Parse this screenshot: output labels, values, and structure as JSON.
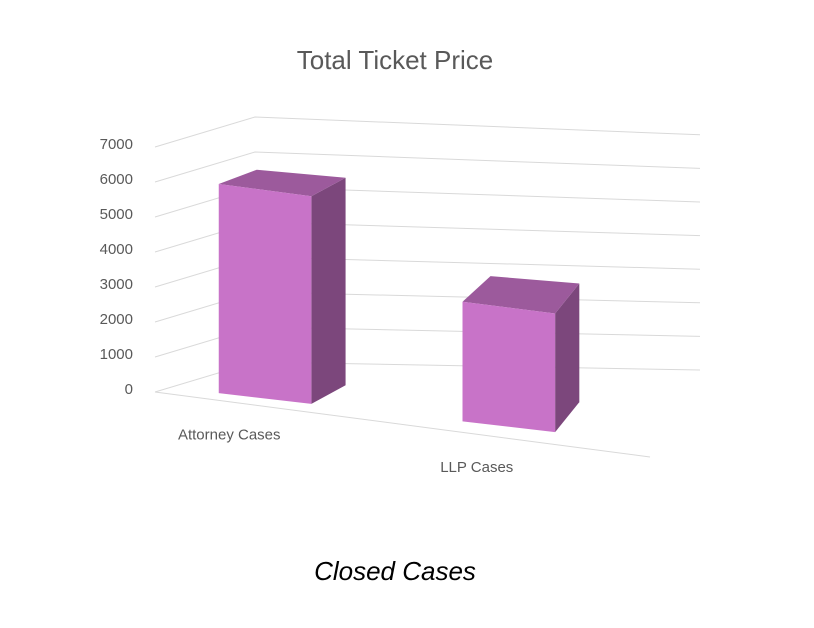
{
  "chart_data": {
    "type": "bar3d",
    "title": "Total Ticket Price",
    "caption": "Closed Cases",
    "categories": [
      "Attorney Cases",
      "LLP Cases"
    ],
    "values": [
      6000,
      3500
    ],
    "color": "#c873c8",
    "ylim": [
      0,
      7000
    ],
    "yticks": [
      0,
      1000,
      2000,
      3000,
      4000,
      5000,
      6000,
      7000
    ],
    "grid": true
  }
}
